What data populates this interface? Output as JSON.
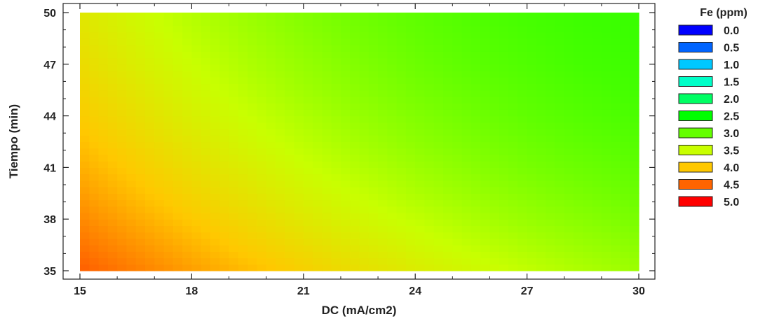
{
  "chart_data": {
    "type": "heatmap",
    "title": "",
    "xlabel": "DC (mA/cm2)",
    "ylabel": "Tiempo (min)",
    "xlim": [
      15,
      30
    ],
    "ylim": [
      35,
      50
    ],
    "x_ticks": [
      "15",
      "18",
      "21",
      "24",
      "27",
      "30"
    ],
    "y_ticks": [
      "35",
      "38",
      "41",
      "44",
      "47",
      "50"
    ],
    "legend": {
      "title": "Fe (ppm)",
      "position": "right",
      "levels": [
        {
          "label": "0.0",
          "value": 0.0,
          "color": "#0000ff"
        },
        {
          "label": "0.5",
          "value": 0.5,
          "color": "#0064ff"
        },
        {
          "label": "1.0",
          "value": 1.0,
          "color": "#00c8ff"
        },
        {
          "label": "1.5",
          "value": 1.5,
          "color": "#00ffc8"
        },
        {
          "label": "2.0",
          "value": 2.0,
          "color": "#00ff64"
        },
        {
          "label": "2.5",
          "value": 2.5,
          "color": "#00ff00"
        },
        {
          "label": "3.0",
          "value": 3.0,
          "color": "#64ff00"
        },
        {
          "label": "3.5",
          "value": 3.5,
          "color": "#c8ff00"
        },
        {
          "label": "4.0",
          "value": 4.0,
          "color": "#ffc800"
        },
        {
          "label": "4.5",
          "value": 4.5,
          "color": "#ff6400"
        },
        {
          "label": "5.0",
          "value": 5.0,
          "color": "#ff0000"
        }
      ]
    },
    "grid": false,
    "surface": {
      "variable": "Fe (ppm)",
      "x": [
        15,
        16.5,
        18,
        19.5,
        21,
        22.5,
        24,
        25.5,
        27,
        28.5,
        30
      ],
      "y": [
        35,
        36.5,
        38,
        39.5,
        41,
        42.5,
        44,
        45.5,
        47,
        48.5,
        50
      ],
      "z": [
        [
          4.53,
          4.37,
          4.21,
          4.07,
          3.93,
          3.8,
          3.68,
          3.57,
          3.47,
          3.37,
          3.28
        ],
        [
          4.42,
          4.26,
          4.1,
          3.95,
          3.82,
          3.69,
          3.57,
          3.46,
          3.36,
          3.27,
          3.19
        ],
        [
          4.32,
          4.15,
          3.99,
          3.85,
          3.71,
          3.58,
          3.47,
          3.36,
          3.26,
          3.18,
          3.1
        ],
        [
          4.22,
          4.05,
          3.89,
          3.75,
          3.61,
          3.49,
          3.37,
          3.27,
          3.18,
          3.1,
          3.03
        ],
        [
          4.13,
          3.96,
          3.8,
          3.66,
          3.52,
          3.4,
          3.29,
          3.19,
          3.1,
          3.03,
          2.97
        ],
        [
          4.04,
          3.88,
          3.72,
          3.57,
          3.44,
          3.32,
          3.21,
          3.12,
          3.04,
          2.97,
          2.92
        ],
        [
          3.97,
          3.8,
          3.64,
          3.5,
          3.37,
          3.25,
          3.15,
          3.06,
          2.98,
          2.92,
          2.87
        ],
        [
          3.89,
          3.73,
          3.57,
          3.43,
          3.3,
          3.19,
          3.09,
          3.01,
          2.94,
          2.88,
          2.83
        ],
        [
          3.83,
          3.66,
          3.51,
          3.37,
          3.25,
          3.14,
          3.04,
          2.96,
          2.9,
          2.84,
          2.81
        ],
        [
          3.77,
          3.61,
          3.45,
          3.32,
          3.2,
          3.09,
          3.0,
          2.93,
          2.87,
          2.82,
          2.79
        ],
        [
          3.72,
          3.55,
          3.4,
          3.27,
          3.15,
          3.05,
          2.97,
          2.9,
          2.84,
          2.8,
          2.78
        ]
      ]
    }
  }
}
